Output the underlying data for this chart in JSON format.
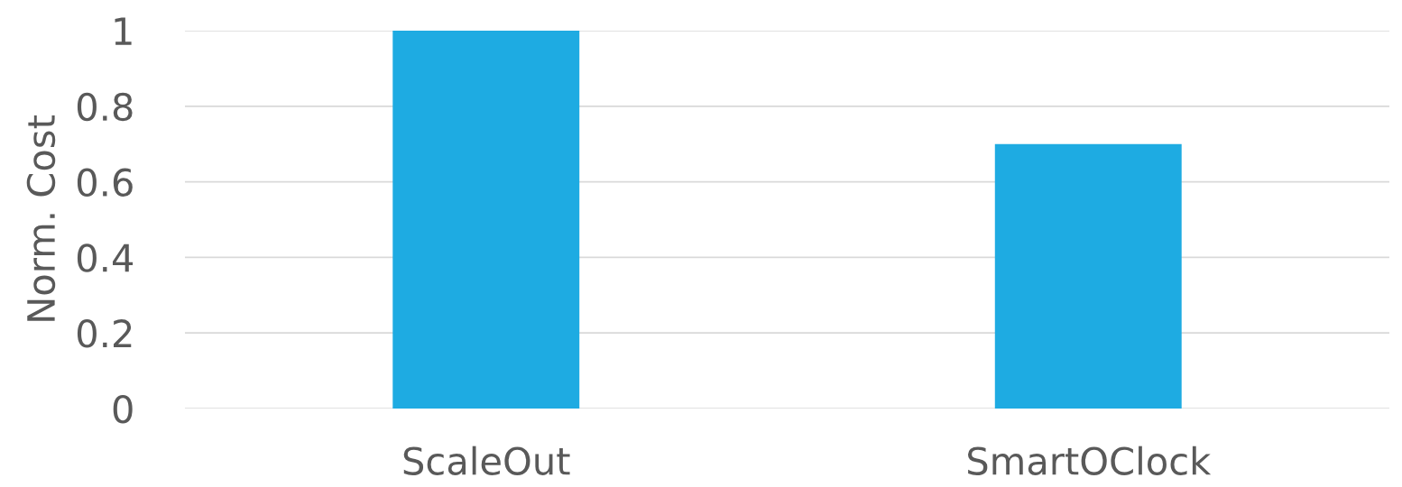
{
  "chart_data": {
    "type": "bar",
    "ylabel": "Norm. Cost",
    "categories": [
      "ScaleOut",
      "SmartOClock"
    ],
    "values": [
      1,
      0.7
    ],
    "color": "#1eabe2",
    "ylim": [
      0,
      1
    ],
    "yticks": [
      {
        "value": 0,
        "label": "0"
      },
      0.2,
      0.4,
      0.6,
      0.8,
      {
        "value": 1,
        "label": "1"
      }
    ],
    "grid": "y",
    "legend": false
  }
}
